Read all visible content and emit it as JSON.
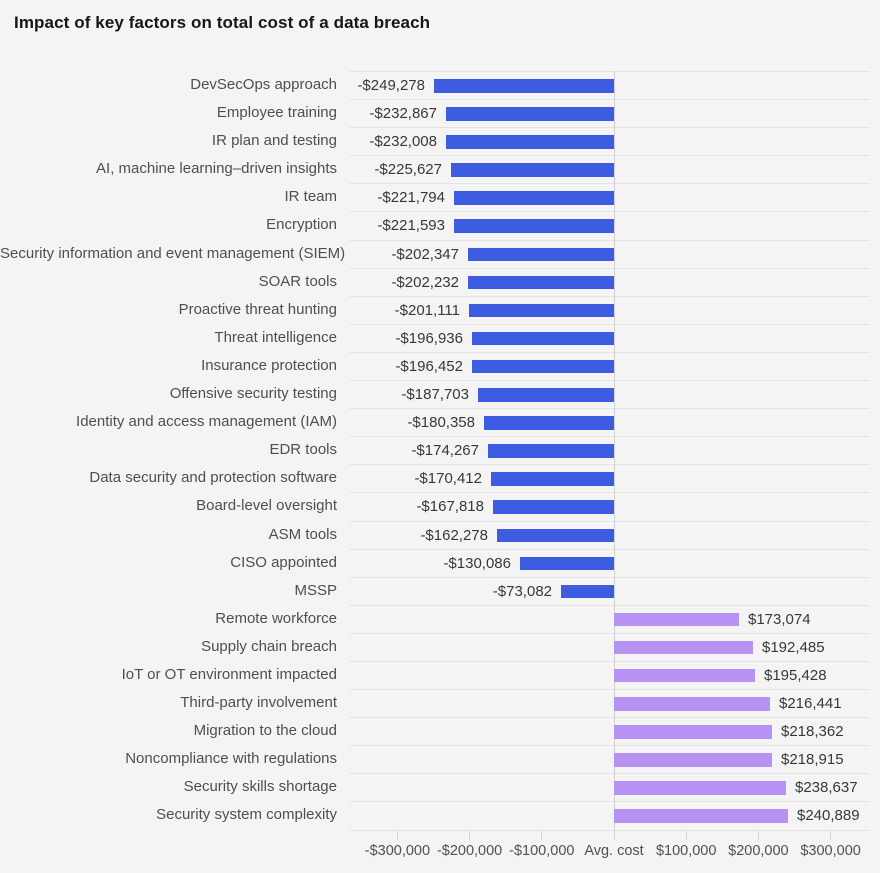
{
  "title": "Impact of key factors on total cost of a data breach",
  "colors": {
    "background": "#f4f4f4",
    "negative_bar": "#3d5ce0",
    "positive_bar": "#b692f2",
    "gridline": "#e3e3e3",
    "zero_line": "#cfcfcf",
    "title_text": "#161616",
    "category_text": "#4f4f4f",
    "value_text": "#383838",
    "axis_text": "#515151"
  },
  "chart_data": {
    "type": "bar",
    "orientation": "horizontal",
    "title": "Impact of key factors on total cost of a data breach",
    "xlabel": "",
    "ylabel": "",
    "unit": "USD",
    "baseline_label": "Avg. cost",
    "legend": "none",
    "grid": "horizontal row separators, vertical baseline at zero",
    "xlim": [
      -365000,
      355000
    ],
    "x_ticks": [
      -300000,
      -200000,
      -100000,
      0,
      100000,
      200000,
      300000
    ],
    "x_tick_labels": [
      "-$300,000",
      "-$200,000",
      "-$100,000",
      "Avg. cost",
      "$100,000",
      "$200,000",
      "$300,000"
    ],
    "categories": [
      "DevSecOps approach",
      "Employee training",
      "IR plan and testing",
      "AI, machine learning–driven insights",
      "IR team",
      "Encryption",
      "Security information and event management (SIEM)",
      "SOAR tools",
      "Proactive threat hunting",
      "Threat intelligence",
      "Insurance protection",
      "Offensive security testing",
      "Identity and access management (IAM)",
      "EDR tools",
      "Data security and protection software",
      "Board-level oversight",
      "ASM tools",
      "CISO appointed",
      "MSSP",
      "Remote workforce",
      "Supply chain breach",
      "IoT or OT environment impacted",
      "Third-party involvement",
      "Migration to the cloud",
      "Noncompliance with regulations",
      "Security skills shortage",
      "Security system complexity"
    ],
    "values": [
      -249278,
      -232867,
      -232008,
      -225627,
      -221794,
      -221593,
      -202347,
      -202232,
      -201111,
      -196936,
      -196452,
      -187703,
      -180358,
      -174267,
      -170412,
      -167818,
      -162278,
      -130086,
      -73082,
      173074,
      192485,
      195428,
      216441,
      218362,
      218915,
      238637,
      240889
    ],
    "value_labels": [
      "-$249,278",
      "-$232,867",
      "-$232,008",
      "-$225,627",
      "-$221,794",
      "-$221,593",
      "-$202,347",
      "-$202,232",
      "-$201,111",
      "-$196,936",
      "-$196,452",
      "-$187,703",
      "-$180,358",
      "-$174,267",
      "-$170,412",
      "-$167,818",
      "-$162,278",
      "-$130,086",
      "-$73,082",
      "$173,074",
      "$192,485",
      "$195,428",
      "$216,441",
      "$218,362",
      "$218,915",
      "$238,637",
      "$240,889"
    ]
  }
}
